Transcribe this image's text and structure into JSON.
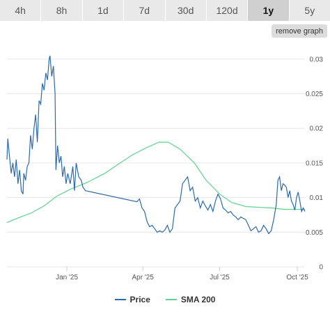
{
  "range_tabs": {
    "items": [
      "4h",
      "8h",
      "1d",
      "7d",
      "30d",
      "120d",
      "1y",
      "5y"
    ],
    "active": "1y"
  },
  "remove_graph_label": "remove graph",
  "colors": {
    "price": "#2a6aad",
    "sma": "#5ed38e",
    "grid": "#e6e6e6"
  },
  "chart_data": {
    "type": "line",
    "title": "",
    "xlabel": "",
    "ylabel": "",
    "x_range": [
      "2024-10-22",
      "2025-10-10"
    ],
    "ylim": [
      0,
      0.0325
    ],
    "y_ticks": [
      {
        "value": 0,
        "label": "0"
      },
      {
        "value": 0.005,
        "label": "0.005"
      },
      {
        "value": 0.01,
        "label": "0.01"
      },
      {
        "value": 0.015,
        "label": "0.015"
      },
      {
        "value": 0.02,
        "label": "0.02"
      },
      {
        "value": 0.025,
        "label": "0.025"
      },
      {
        "value": 0.03,
        "label": "0.03"
      }
    ],
    "x_ticks": [
      {
        "date": "2025-01-01",
        "label": "Jan '25"
      },
      {
        "date": "2025-04-01",
        "label": "Apr '25"
      },
      {
        "date": "2025-07-01",
        "label": "Jul '25"
      },
      {
        "date": "2025-10-01",
        "label": "Oct '25"
      }
    ],
    "grid": true,
    "legend_position": "bottom-center",
    "series": [
      {
        "name": "Price",
        "color": "#2a6aad",
        "points": [
          [
            "2024-10-22",
            0.0155
          ],
          [
            "2024-10-23",
            0.0185
          ],
          [
            "2024-10-25",
            0.016
          ],
          [
            "2024-10-27",
            0.0135
          ],
          [
            "2024-10-29",
            0.015
          ],
          [
            "2024-10-31",
            0.013
          ],
          [
            "2024-11-02",
            0.0155
          ],
          [
            "2024-11-04",
            0.012
          ],
          [
            "2024-11-06",
            0.014
          ],
          [
            "2024-11-08",
            0.011
          ],
          [
            "2024-11-10",
            0.0105
          ],
          [
            "2024-11-11",
            0.0135
          ],
          [
            "2024-11-13",
            0.0125
          ],
          [
            "2024-11-15",
            0.0145
          ],
          [
            "2024-11-17",
            0.015
          ],
          [
            "2024-11-19",
            0.019
          ],
          [
            "2024-11-21",
            0.017
          ],
          [
            "2024-11-23",
            0.02
          ],
          [
            "2024-11-25",
            0.022
          ],
          [
            "2024-11-27",
            0.018
          ],
          [
            "2024-11-29",
            0.024
          ],
          [
            "2024-12-01",
            0.0235
          ],
          [
            "2024-12-03",
            0.0265
          ],
          [
            "2024-12-05",
            0.0255
          ],
          [
            "2024-12-07",
            0.028
          ],
          [
            "2024-12-09",
            0.027
          ],
          [
            "2024-12-11",
            0.03
          ],
          [
            "2024-12-12",
            0.0305
          ],
          [
            "2024-12-14",
            0.0275
          ],
          [
            "2024-12-16",
            0.029
          ],
          [
            "2024-12-18",
            0.025
          ],
          [
            "2024-12-19",
            0.014
          ],
          [
            "2024-12-21",
            0.0175
          ],
          [
            "2024-12-23",
            0.015
          ],
          [
            "2024-12-25",
            0.016
          ],
          [
            "2024-12-27",
            0.013
          ],
          [
            "2024-12-29",
            0.0145
          ],
          [
            "2024-12-31",
            0.012
          ],
          [
            "2025-01-02",
            0.0135
          ],
          [
            "2025-01-05",
            0.012
          ],
          [
            "2025-01-08",
            0.0145
          ],
          [
            "2025-01-10",
            0.011
          ],
          [
            "2025-01-12",
            0.015
          ],
          [
            "2025-01-15",
            0.013
          ],
          [
            "2025-01-18",
            0.0125
          ],
          [
            "2025-01-20",
            0.0115
          ],
          [
            "2025-01-23",
            0.011
          ],
          [
            "2025-03-25",
            0.0094
          ],
          [
            "2025-03-28",
            0.0098
          ],
          [
            "2025-03-31",
            0.0085
          ],
          [
            "2025-04-03",
            0.008
          ],
          [
            "2025-04-06",
            0.0065
          ],
          [
            "2025-04-09",
            0.0058
          ],
          [
            "2025-04-12",
            0.006
          ],
          [
            "2025-04-15",
            0.0055
          ],
          [
            "2025-04-18",
            0.005
          ],
          [
            "2025-04-21",
            0.0052
          ],
          [
            "2025-04-24",
            0.005
          ],
          [
            "2025-04-27",
            0.0053
          ],
          [
            "2025-04-30",
            0.006
          ],
          [
            "2025-05-03",
            0.005
          ],
          [
            "2025-05-06",
            0.0055
          ],
          [
            "2025-05-09",
            0.0085
          ],
          [
            "2025-05-12",
            0.009
          ],
          [
            "2025-05-15",
            0.0095
          ],
          [
            "2025-05-18",
            0.012
          ],
          [
            "2025-05-21",
            0.0125
          ],
          [
            "2025-05-24",
            0.013
          ],
          [
            "2025-05-27",
            0.011
          ],
          [
            "2025-05-30",
            0.0115
          ],
          [
            "2025-06-02",
            0.0095
          ],
          [
            "2025-06-05",
            0.01
          ],
          [
            "2025-06-08",
            0.0085
          ],
          [
            "2025-06-11",
            0.0095
          ],
          [
            "2025-06-14",
            0.0088
          ],
          [
            "2025-06-17",
            0.0082
          ],
          [
            "2025-06-20",
            0.009
          ],
          [
            "2025-06-23",
            0.008
          ],
          [
            "2025-06-26",
            0.0095
          ],
          [
            "2025-06-29",
            0.0105
          ],
          [
            "2025-07-02",
            0.0098
          ],
          [
            "2025-07-05",
            0.0085
          ],
          [
            "2025-07-08",
            0.0082
          ],
          [
            "2025-07-11",
            0.0078
          ],
          [
            "2025-07-14",
            0.008
          ],
          [
            "2025-07-17",
            0.0075
          ],
          [
            "2025-07-20",
            0.0072
          ],
          [
            "2025-07-23",
            0.0068
          ],
          [
            "2025-07-26",
            0.0072
          ],
          [
            "2025-07-29",
            0.007
          ],
          [
            "2025-08-01",
            0.0068
          ],
          [
            "2025-08-04",
            0.006
          ],
          [
            "2025-08-07",
            0.0052
          ],
          [
            "2025-08-10",
            0.0055
          ],
          [
            "2025-08-13",
            0.0058
          ],
          [
            "2025-08-16",
            0.005
          ],
          [
            "2025-08-19",
            0.0052
          ],
          [
            "2025-08-22",
            0.006
          ],
          [
            "2025-08-25",
            0.0055
          ],
          [
            "2025-08-28",
            0.0048
          ],
          [
            "2025-08-31",
            0.0052
          ],
          [
            "2025-09-03",
            0.0068
          ],
          [
            "2025-09-06",
            0.009
          ],
          [
            "2025-09-08",
            0.0125
          ],
          [
            "2025-09-10",
            0.013
          ],
          [
            "2025-09-12",
            0.011
          ],
          [
            "2025-09-14",
            0.012
          ],
          [
            "2025-09-16",
            0.0118
          ],
          [
            "2025-09-18",
            0.0115
          ],
          [
            "2025-09-20",
            0.01
          ],
          [
            "2025-09-22",
            0.011
          ],
          [
            "2025-09-24",
            0.0095
          ],
          [
            "2025-09-26",
            0.009
          ],
          [
            "2025-09-28",
            0.0082
          ],
          [
            "2025-09-30",
            0.01
          ],
          [
            "2025-10-02",
            0.0108
          ],
          [
            "2025-10-04",
            0.0095
          ],
          [
            "2025-10-06",
            0.008
          ],
          [
            "2025-10-08",
            0.0085
          ],
          [
            "2025-10-10",
            0.008
          ]
        ]
      },
      {
        "name": "SMA 200",
        "color": "#5ed38e",
        "points": [
          [
            "2024-10-22",
            0.0064
          ],
          [
            "2024-11-05",
            0.0071
          ],
          [
            "2024-11-20",
            0.0078
          ],
          [
            "2024-12-05",
            0.0088
          ],
          [
            "2024-12-20",
            0.0102
          ],
          [
            "2025-01-05",
            0.0112
          ],
          [
            "2025-01-25",
            0.0122
          ],
          [
            "2025-02-15",
            0.0135
          ],
          [
            "2025-03-05",
            0.015
          ],
          [
            "2025-03-20",
            0.0162
          ],
          [
            "2025-04-05",
            0.0172
          ],
          [
            "2025-04-20",
            0.018
          ],
          [
            "2025-05-01",
            0.018
          ],
          [
            "2025-05-15",
            0.017
          ],
          [
            "2025-06-01",
            0.015
          ],
          [
            "2025-06-15",
            0.0125
          ],
          [
            "2025-07-01",
            0.0105
          ],
          [
            "2025-07-15",
            0.0093
          ],
          [
            "2025-08-01",
            0.0087
          ],
          [
            "2025-08-15",
            0.0086
          ],
          [
            "2025-09-01",
            0.0085
          ],
          [
            "2025-09-15",
            0.0083
          ],
          [
            "2025-10-01",
            0.0083
          ],
          [
            "2025-10-10",
            0.0083
          ]
        ]
      }
    ]
  }
}
